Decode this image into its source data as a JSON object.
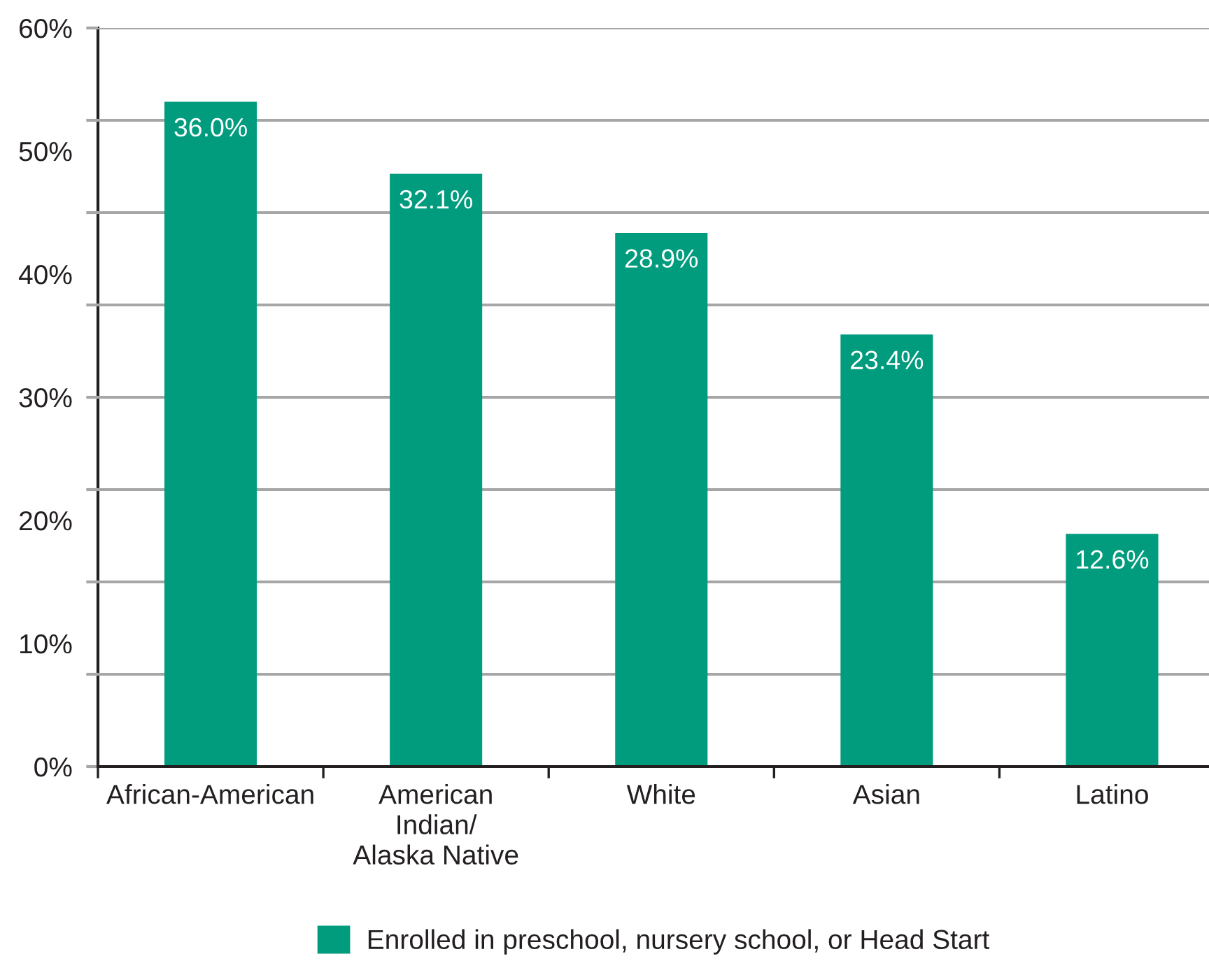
{
  "chart_data": {
    "type": "bar",
    "categories": [
      "African-American",
      "American\nIndian/\nAlaska Native",
      "White",
      "Asian",
      "Latino"
    ],
    "series": [
      {
        "name": "Enrolled in preschool, nursery school, or Head Start",
        "color": "#009c7d",
        "axis": "y2",
        "values": [
          36.0,
          32.1,
          28.9,
          23.4,
          12.6
        ],
        "value_labels": [
          "36.0%",
          "32.1%",
          "28.9%",
          "23.4%",
          "12.6%"
        ]
      }
    ],
    "ylim": [
      0,
      60
    ],
    "yticks": [
      {
        "value": 0,
        "label": "0%"
      },
      {
        "value": 10,
        "label": "10%"
      },
      {
        "value": 20,
        "label": "20%"
      },
      {
        "value": 30,
        "label": "30%"
      },
      {
        "value": 40,
        "label": "40%"
      },
      {
        "value": 50,
        "label": "50%"
      },
      {
        "value": 60,
        "label": "60%"
      }
    ],
    "y2lim": [
      0,
      40
    ],
    "y2ticks": [
      {
        "value": 0,
        "label": null
      },
      {
        "value": 5,
        "label": null
      },
      {
        "value": 10,
        "label": null
      },
      {
        "value": 15,
        "label": null
      },
      {
        "value": 20,
        "label": null
      },
      {
        "value": 25,
        "label": null
      },
      {
        "value": 30,
        "label": null
      },
      {
        "value": 35,
        "label": null
      },
      {
        "value": 40,
        "label": null
      }
    ],
    "grid": "y2",
    "legend": "bottom"
  }
}
